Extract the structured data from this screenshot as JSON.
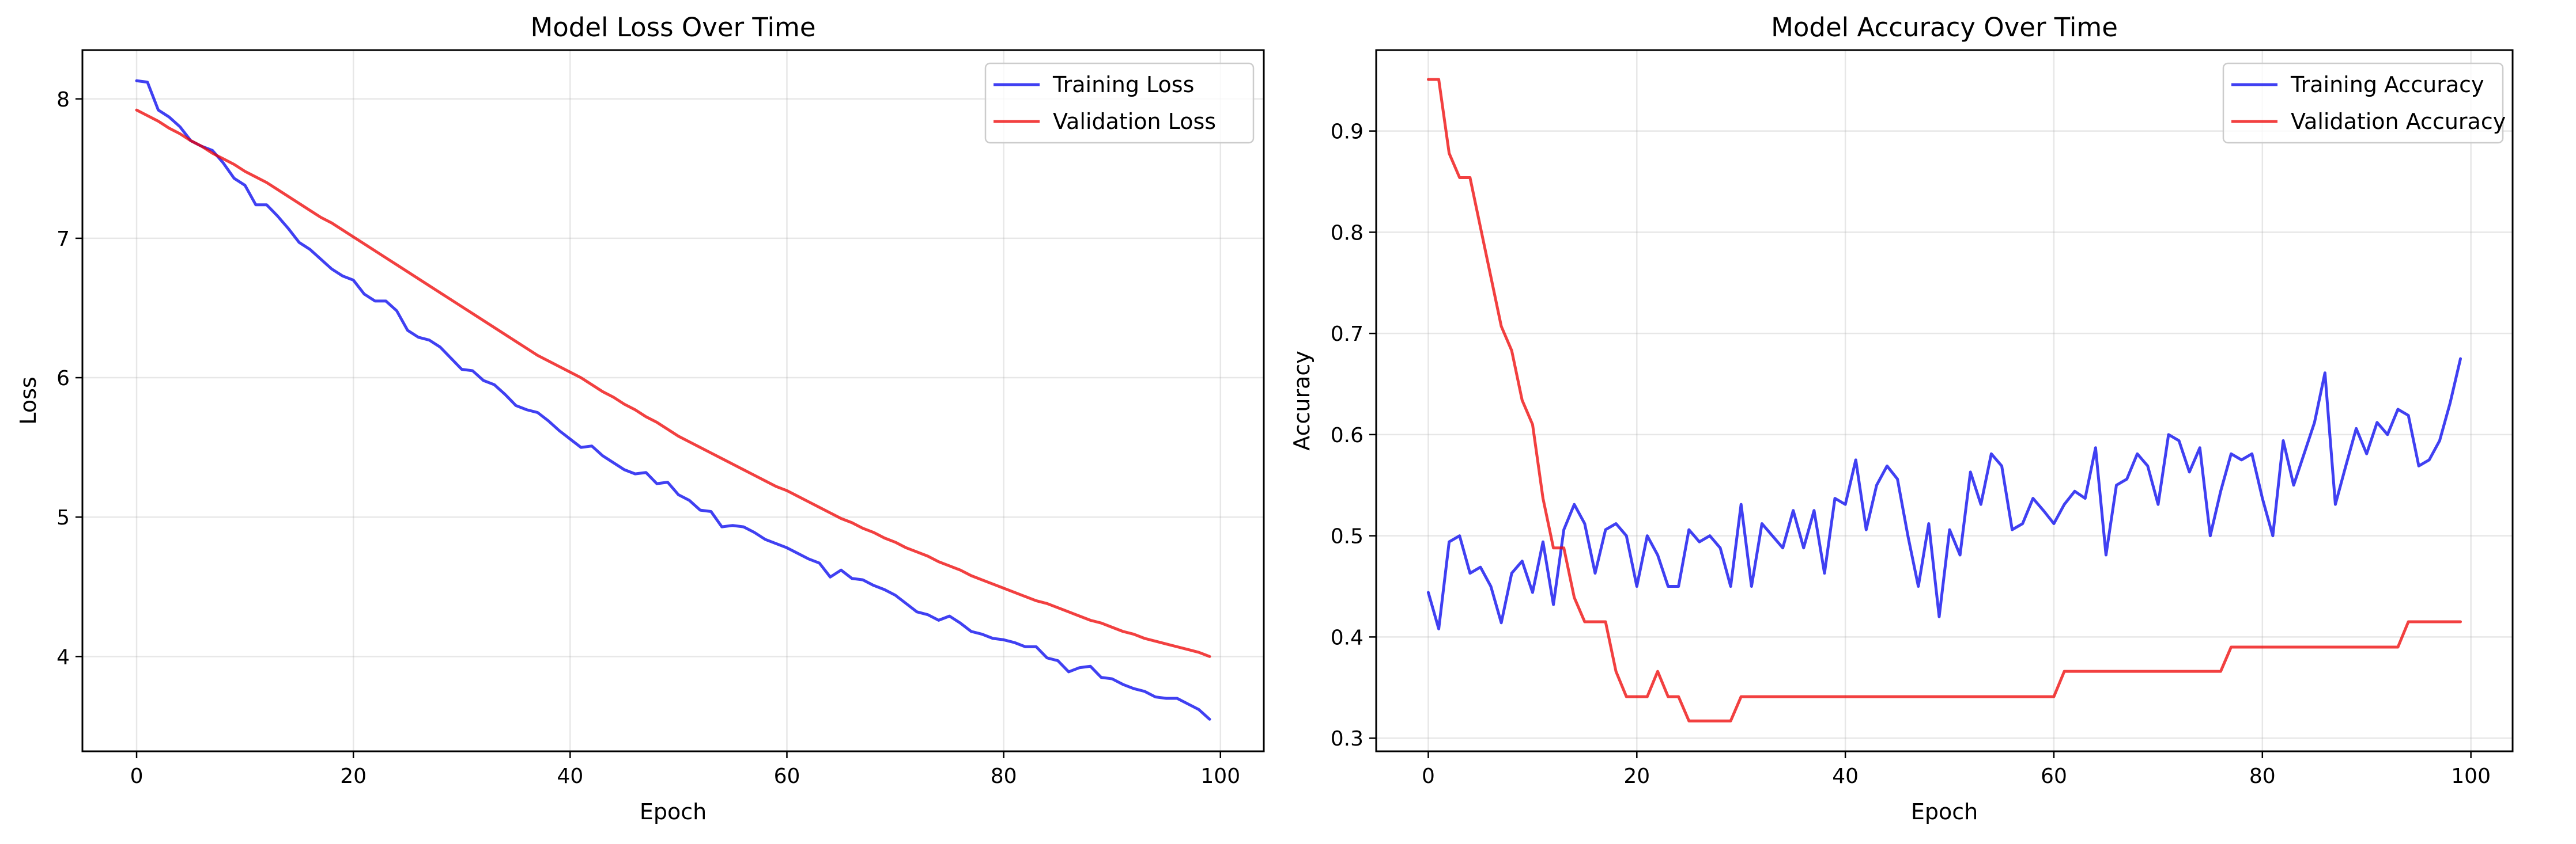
{
  "chart_data": [
    {
      "type": "line",
      "title": "Model Loss Over Time",
      "xlabel": "Epoch",
      "ylabel": "Loss",
      "xlim": [
        -5,
        104
      ],
      "ylim": [
        3.32,
        8.35
      ],
      "xticks": [
        0,
        20,
        40,
        60,
        80,
        100
      ],
      "yticks": [
        4,
        5,
        6,
        7,
        8
      ],
      "grid": true,
      "legend_position": "top-right",
      "series": [
        {
          "name": "Training Loss",
          "color": "#0000ee",
          "values": [
            8.13,
            8.12,
            7.92,
            7.87,
            7.8,
            7.7,
            7.66,
            7.63,
            7.54,
            7.43,
            7.38,
            7.24,
            7.24,
            7.16,
            7.07,
            6.97,
            6.92,
            6.85,
            6.78,
            6.73,
            6.7,
            6.6,
            6.55,
            6.55,
            6.48,
            6.34,
            6.29,
            6.27,
            6.22,
            6.14,
            6.06,
            6.05,
            5.98,
            5.95,
            5.88,
            5.8,
            5.77,
            5.75,
            5.69,
            5.62,
            5.56,
            5.5,
            5.51,
            5.44,
            5.39,
            5.34,
            5.31,
            5.32,
            5.24,
            5.25,
            5.16,
            5.12,
            5.05,
            5.04,
            4.93,
            4.94,
            4.93,
            4.89,
            4.84,
            4.81,
            4.78,
            4.74,
            4.7,
            4.67,
            4.57,
            4.62,
            4.56,
            4.55,
            4.51,
            4.48,
            4.44,
            4.38,
            4.32,
            4.3,
            4.26,
            4.29,
            4.24,
            4.18,
            4.16,
            4.13,
            4.12,
            4.1,
            4.07,
            4.07,
            3.99,
            3.97,
            3.89,
            3.92,
            3.93,
            3.85,
            3.84,
            3.8,
            3.77,
            3.75,
            3.71,
            3.7,
            3.7,
            3.66,
            3.62,
            3.55
          ]
        },
        {
          "name": "Validation Loss",
          "color": "#ee0000",
          "values": [
            7.92,
            7.88,
            7.84,
            7.79,
            7.75,
            7.7,
            7.66,
            7.61,
            7.57,
            7.53,
            7.48,
            7.44,
            7.4,
            7.35,
            7.3,
            7.25,
            7.2,
            7.15,
            7.11,
            7.06,
            7.01,
            6.96,
            6.91,
            6.86,
            6.81,
            6.76,
            6.71,
            6.66,
            6.61,
            6.56,
            6.51,
            6.46,
            6.41,
            6.36,
            6.31,
            6.26,
            6.21,
            6.16,
            6.12,
            6.08,
            6.04,
            6.0,
            5.95,
            5.9,
            5.86,
            5.81,
            5.77,
            5.72,
            5.68,
            5.63,
            5.58,
            5.54,
            5.5,
            5.46,
            5.42,
            5.38,
            5.34,
            5.3,
            5.26,
            5.22,
            5.19,
            5.15,
            5.11,
            5.07,
            5.03,
            4.99,
            4.96,
            4.92,
            4.89,
            4.85,
            4.82,
            4.78,
            4.75,
            4.72,
            4.68,
            4.65,
            4.62,
            4.58,
            4.55,
            4.52,
            4.49,
            4.46,
            4.43,
            4.4,
            4.38,
            4.35,
            4.32,
            4.29,
            4.26,
            4.24,
            4.21,
            4.18,
            4.16,
            4.13,
            4.11,
            4.09,
            4.07,
            4.05,
            4.03,
            4.0
          ]
        }
      ]
    },
    {
      "type": "line",
      "title": "Model Accuracy Over Time",
      "xlabel": "Epoch",
      "ylabel": "Accuracy",
      "xlim": [
        -5,
        104
      ],
      "ylim": [
        0.287,
        0.98
      ],
      "xticks": [
        0,
        20,
        40,
        60,
        80,
        100
      ],
      "yticks": [
        0.3,
        0.4,
        0.5,
        0.6,
        0.7,
        0.8,
        0.9
      ],
      "grid": true,
      "legend_position": "top-right",
      "series": [
        {
          "name": "Training Accuracy",
          "color": "#0000ee",
          "values": [
            0.444,
            0.408,
            0.494,
            0.5,
            0.463,
            0.469,
            0.45,
            0.414,
            0.463,
            0.475,
            0.444,
            0.494,
            0.432,
            0.506,
            0.531,
            0.512,
            0.463,
            0.506,
            0.512,
            0.5,
            0.45,
            0.5,
            0.481,
            0.45,
            0.45,
            0.506,
            0.494,
            0.5,
            0.488,
            0.45,
            0.531,
            0.45,
            0.512,
            0.5,
            0.488,
            0.525,
            0.488,
            0.525,
            0.463,
            0.537,
            0.531,
            0.575,
            0.506,
            0.55,
            0.569,
            0.556,
            0.5,
            0.45,
            0.512,
            0.42,
            0.506,
            0.481,
            0.563,
            0.531,
            0.581,
            0.569,
            0.506,
            0.512,
            0.537,
            0.525,
            0.512,
            0.531,
            0.544,
            0.537,
            0.587,
            0.481,
            0.55,
            0.556,
            0.581,
            0.569,
            0.531,
            0.6,
            0.594,
            0.563,
            0.587,
            0.5,
            0.544,
            0.581,
            0.575,
            0.581,
            0.537,
            0.5,
            0.594,
            0.55,
            0.581,
            0.612,
            0.661,
            0.531,
            0.569,
            0.606,
            0.581,
            0.612,
            0.6,
            0.625,
            0.619,
            0.569,
            0.575,
            0.594,
            0.631,
            0.675
          ]
        },
        {
          "name": "Validation Accuracy",
          "color": "#ee0000",
          "values": [
            0.951,
            0.951,
            0.878,
            0.854,
            0.854,
            0.805,
            0.756,
            0.707,
            0.683,
            0.634,
            0.61,
            0.537,
            0.488,
            0.488,
            0.439,
            0.415,
            0.415,
            0.415,
            0.366,
            0.341,
            0.341,
            0.341,
            0.366,
            0.341,
            0.341,
            0.317,
            0.317,
            0.317,
            0.317,
            0.317,
            0.341,
            0.341,
            0.341,
            0.341,
            0.341,
            0.341,
            0.341,
            0.341,
            0.341,
            0.341,
            0.341,
            0.341,
            0.341,
            0.341,
            0.341,
            0.341,
            0.341,
            0.341,
            0.341,
            0.341,
            0.341,
            0.341,
            0.341,
            0.341,
            0.341,
            0.341,
            0.341,
            0.341,
            0.341,
            0.341,
            0.341,
            0.366,
            0.366,
            0.366,
            0.366,
            0.366,
            0.366,
            0.366,
            0.366,
            0.366,
            0.366,
            0.366,
            0.366,
            0.366,
            0.366,
            0.366,
            0.366,
            0.39,
            0.39,
            0.39,
            0.39,
            0.39,
            0.39,
            0.39,
            0.39,
            0.39,
            0.39,
            0.39,
            0.39,
            0.39,
            0.39,
            0.39,
            0.39,
            0.39,
            0.415,
            0.415,
            0.415,
            0.415,
            0.415,
            0.415
          ]
        }
      ]
    }
  ]
}
